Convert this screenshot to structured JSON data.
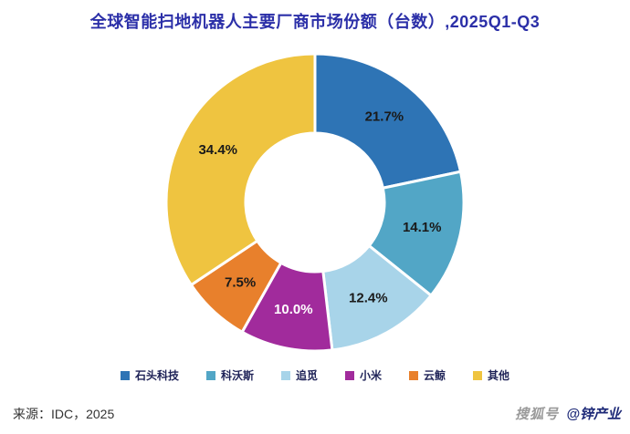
{
  "title": "全球智能扫地机器人主要厂商市场份额（台数）,2025Q1-Q3",
  "chart_data": {
    "type": "pie",
    "subtype": "donut",
    "title": "全球智能扫地机器人主要厂商市场份额（台数）,2025Q1-Q3",
    "unit": "%",
    "start_angle_deg": -90,
    "direction": "clockwise",
    "legend_position": "bottom",
    "series": [
      {
        "name": "石头科技",
        "value": 21.7,
        "label": "21.7%",
        "color": "#2E74B5",
        "label_color": "#1a1a1a"
      },
      {
        "name": "科沃斯",
        "value": 14.1,
        "label": "14.1%",
        "color": "#52A6C6",
        "label_color": "#1a1a1a"
      },
      {
        "name": "追觅",
        "value": 12.4,
        "label": "12.4%",
        "color": "#A8D4E9",
        "label_color": "#1a1a1a"
      },
      {
        "name": "小米",
        "value": 10.0,
        "label": "10.0%",
        "color": "#A12B9C",
        "label_color": "#ffffff"
      },
      {
        "name": "云鲸",
        "value": 7.5,
        "label": "7.5%",
        "color": "#E8802C",
        "label_color": "#1a1a1a"
      },
      {
        "name": "其他",
        "value": 34.4,
        "label": "34.4%",
        "color": "#EFC440",
        "label_color": "#1a1a1a"
      }
    ]
  },
  "footer": {
    "source": "来源：IDC，2025"
  },
  "watermark": {
    "platform": "搜狐号",
    "account": "@锌产业"
  },
  "colors": {
    "title": "#2b2fa8",
    "legend_text": "#1e2257",
    "source_text": "#333333",
    "background": "#ffffff"
  }
}
